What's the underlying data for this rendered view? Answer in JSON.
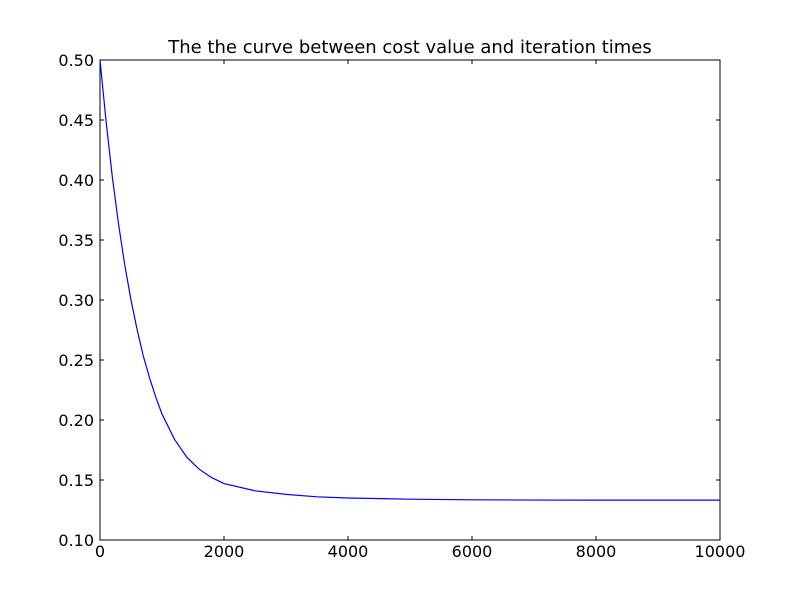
{
  "chart_data": {
    "type": "line",
    "title": "The the curve between cost value  and iteration times",
    "xlabel": "",
    "ylabel": "",
    "xlim": [
      0,
      10000
    ],
    "ylim": [
      0.1,
      0.5
    ],
    "grid": false,
    "x_ticks": [
      "0",
      "2000",
      "4000",
      "6000",
      "8000",
      "10000"
    ],
    "y_ticks": [
      "0.10",
      "0.15",
      "0.20",
      "0.25",
      "0.30",
      "0.35",
      "0.40",
      "0.45",
      "0.50"
    ],
    "series": [
      {
        "color": "#0000ff",
        "x": [
          0,
          100,
          200,
          300,
          400,
          500,
          600,
          700,
          800,
          900,
          1000,
          1200,
          1400,
          1600,
          1800,
          2000,
          2500,
          3000,
          3500,
          4000,
          5000,
          6000,
          7000,
          8000,
          9000,
          10000
        ],
        "y": [
          0.5,
          0.448,
          0.402,
          0.363,
          0.329,
          0.3,
          0.275,
          0.253,
          0.235,
          0.219,
          0.205,
          0.184,
          0.169,
          0.159,
          0.152,
          0.147,
          0.141,
          0.138,
          0.136,
          0.135,
          0.134,
          0.1335,
          0.1333,
          0.1332,
          0.1332,
          0.1332
        ]
      }
    ]
  }
}
